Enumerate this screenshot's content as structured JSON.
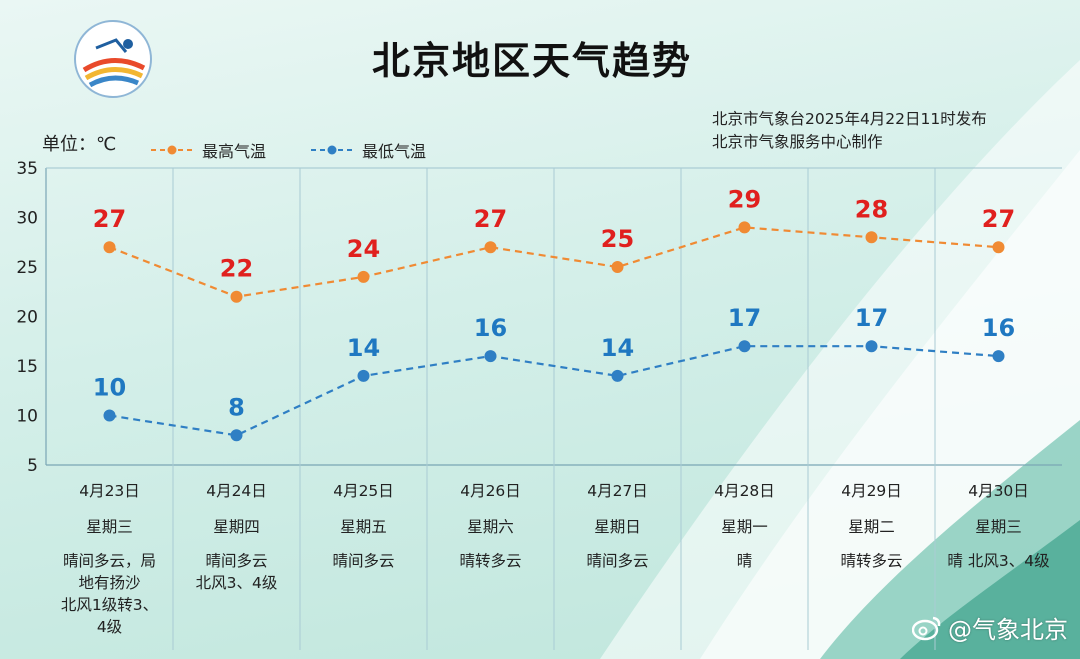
{
  "title": "北京地区天气趋势",
  "publish": {
    "line1": "北京市气象台2025年4月22日11时发布",
    "line2": "北京市气象服务中心制作"
  },
  "unit_label": "单位：℃",
  "legend": {
    "high": "最高气温",
    "low": "最低气温"
  },
  "watermark": "@气象北京",
  "colors": {
    "high": "#f08a33",
    "low": "#2f7fc4",
    "high_label": "#e0201e",
    "low_label": "#1f78c1"
  },
  "forecast": [
    {
      "date": "4月23日",
      "weekday": "星期三",
      "condition": [
        "晴间多云，局",
        "地有扬沙",
        "北风1级转3、",
        "4级"
      ]
    },
    {
      "date": "4月24日",
      "weekday": "星期四",
      "condition": [
        "晴间多云",
        "北风3、4级"
      ]
    },
    {
      "date": "4月25日",
      "weekday": "星期五",
      "condition": [
        "晴间多云"
      ]
    },
    {
      "date": "4月26日",
      "weekday": "星期六",
      "condition": [
        "晴转多云"
      ]
    },
    {
      "date": "4月27日",
      "weekday": "星期日",
      "condition": [
        "晴间多云"
      ]
    },
    {
      "date": "4月28日",
      "weekday": "星期一",
      "condition": [
        "晴"
      ]
    },
    {
      "date": "4月29日",
      "weekday": "星期二",
      "condition": [
        "晴转多云"
      ]
    },
    {
      "date": "4月30日",
      "weekday": "星期三",
      "condition": [
        "晴 北风3、4级"
      ]
    }
  ],
  "chart_data": {
    "type": "line",
    "title": "北京地区天气趋势",
    "categories": [
      "4月23日",
      "4月24日",
      "4月25日",
      "4月26日",
      "4月27日",
      "4月28日",
      "4月29日",
      "4月30日"
    ],
    "series": [
      {
        "name": "最高气温",
        "values": [
          27,
          22,
          24,
          27,
          25,
          29,
          28,
          27
        ]
      },
      {
        "name": "最低气温",
        "values": [
          10,
          8,
          14,
          16,
          14,
          17,
          17,
          16
        ]
      }
    ],
    "ylabel": "单位：℃",
    "ylim": [
      5,
      35
    ],
    "yticks": [
      "35",
      "30",
      "25",
      "20",
      "15",
      "10",
      "5"
    ],
    "grid": "vertical",
    "legend": "top-left"
  }
}
